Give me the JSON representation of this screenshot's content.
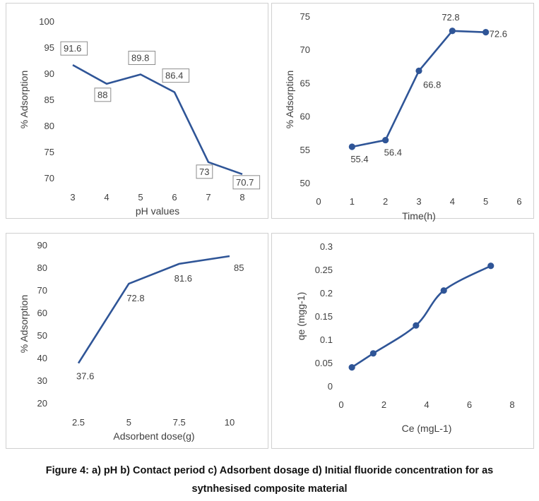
{
  "chart_data": [
    {
      "id": "p1",
      "type": "line",
      "title": "",
      "xlabel": "pH values",
      "ylabel": "% Adsorption",
      "categories": [
        "3",
        "4",
        "5",
        "6",
        "7",
        "8"
      ],
      "values": [
        91.6,
        88,
        89.8,
        86.4,
        73,
        70.7
      ],
      "data_labels": [
        "91.6",
        "88",
        "89.8",
        "86.4",
        "73",
        "70.7"
      ],
      "ylim": [
        70,
        100
      ],
      "yticks": [
        70,
        75,
        80,
        85,
        90,
        95,
        100
      ],
      "markers": false,
      "label_boxes": true,
      "line_color": "#2f5597"
    },
    {
      "id": "p2",
      "type": "scatter",
      "title": "",
      "xlabel": "Time(h)",
      "ylabel": "% Adsorption",
      "x": [
        1,
        2,
        3,
        4,
        5
      ],
      "values": [
        55.4,
        56.4,
        66.8,
        72.8,
        72.6
      ],
      "data_labels": [
        "55.4",
        "56.4",
        "66.8",
        "72.8",
        "72.6"
      ],
      "xlim": [
        0,
        6
      ],
      "xticks": [
        0,
        1,
        2,
        3,
        4,
        5,
        6
      ],
      "ylim": [
        50,
        75
      ],
      "yticks": [
        50,
        55,
        60,
        65,
        70,
        75
      ],
      "markers": true,
      "line_color": "#2f5597"
    },
    {
      "id": "p3",
      "type": "line",
      "title": "",
      "xlabel": "Adsorbent dose(g)",
      "ylabel": "% Adsorption",
      "categories": [
        "2.5",
        "5",
        "7.5",
        "10"
      ],
      "values": [
        37.6,
        72.8,
        81.6,
        85
      ],
      "data_labels": [
        "37.6",
        "72.8",
        "81.6",
        "85"
      ],
      "ylim": [
        20,
        90
      ],
      "yticks": [
        20,
        30,
        40,
        50,
        60,
        70,
        80,
        90
      ],
      "markers": false,
      "line_color": "#2f5597"
    },
    {
      "id": "p4",
      "type": "scatter",
      "title": "",
      "xlabel": "Ce (mgL-1)",
      "ylabel": "qe (mgg-1)",
      "x": [
        0.5,
        1.5,
        3.5,
        4.8,
        7
      ],
      "values": [
        0.04,
        0.07,
        0.13,
        0.205,
        0.258
      ],
      "xlim": [
        0,
        8
      ],
      "xticks": [
        0,
        2,
        4,
        6,
        8
      ],
      "ylim": [
        0,
        0.3
      ],
      "yticks": [
        0,
        0.05,
        0.1,
        0.15,
        0.2,
        0.25,
        0.3
      ],
      "ytick_labels": [
        "0",
        "0.05",
        "0.1",
        "0.15",
        "0.2",
        "0.25",
        "0.3"
      ],
      "markers": true,
      "line_color": "#2f5597"
    }
  ],
  "caption": {
    "line1": "Figure 4: a) pH b) Contact period c) Adsorbent dosage d) Initial fluoride concentration for as",
    "line2": "sytnhesised composite material"
  }
}
